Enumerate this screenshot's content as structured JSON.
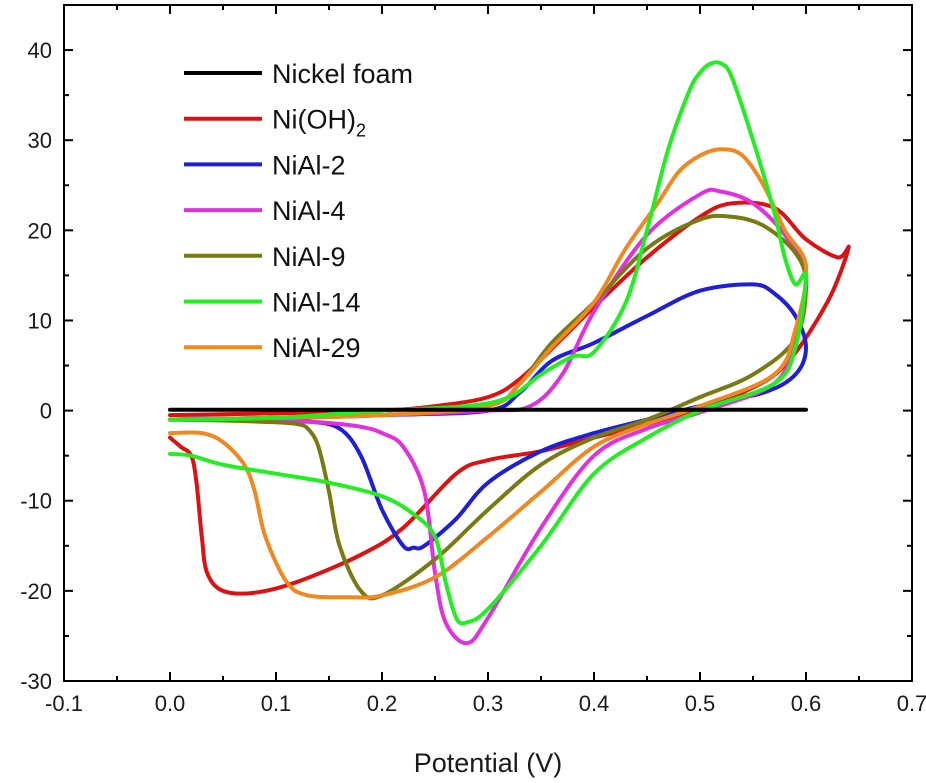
{
  "chart_data": {
    "type": "line",
    "title": "",
    "xlabel": "Potential (V)",
    "ylabel": "",
    "xlim": [
      -0.1,
      0.7
    ],
    "ylim": [
      -30,
      45
    ],
    "xticks": [
      -0.1,
      0.0,
      0.1,
      0.2,
      0.3,
      0.4,
      0.5,
      0.6,
      0.7
    ],
    "xtick_labels": [
      "-0.1",
      "0.0",
      "0.1",
      "0.2",
      "0.3",
      "0.4",
      "0.5",
      "0.6",
      "0.7"
    ],
    "yticks": [
      -30,
      -20,
      -10,
      0,
      10,
      20,
      30,
      40
    ],
    "ytick_labels": [
      "-30",
      "-20",
      "-10",
      "0",
      "10",
      "20",
      "30",
      "40"
    ],
    "grid": false,
    "legend_position": "top-left",
    "series": [
      {
        "name": "Nickel foam",
        "legend": [
          {
            "text": "Nickel foam"
          }
        ],
        "color": "#000000",
        "x": [
          0.0,
          0.1,
          0.2,
          0.3,
          0.4,
          0.5,
          0.6
        ],
        "y": [
          0.1,
          0.1,
          0.1,
          0.1,
          0.1,
          0.1,
          0.1
        ]
      },
      {
        "name": "Ni(OH)2",
        "legend": [
          {
            "text": "Ni(OH)"
          },
          {
            "text": "2",
            "sub": true
          }
        ],
        "color": "#dd1111",
        "x": [
          0.0,
          0.1,
          0.2,
          0.25,
          0.3,
          0.33,
          0.37,
          0.4,
          0.45,
          0.5,
          0.53,
          0.57,
          0.6,
          0.63,
          0.64,
          0.62,
          0.58,
          0.54,
          0.5,
          0.45,
          0.4,
          0.35,
          0.3,
          0.27,
          0.22,
          0.18,
          0.12,
          0.08,
          0.05,
          0.035,
          0.03,
          0.025,
          0.02,
          0.01,
          0.0
        ],
        "y": [
          -0.5,
          -0.3,
          0.0,
          0.5,
          1.5,
          3.5,
          8.0,
          11.5,
          17.0,
          21.5,
          23.0,
          22.5,
          19.0,
          17.0,
          18.0,
          12.0,
          5.0,
          2.0,
          0.3,
          -1.5,
          -3.0,
          -4.5,
          -5.5,
          -7.0,
          -13.0,
          -16.0,
          -19.0,
          -20.2,
          -20.0,
          -18.0,
          -14.0,
          -8.0,
          -5.0,
          -4.0,
          -3.0
        ]
      },
      {
        "name": "NiAl-2",
        "legend": [
          {
            "text": "NiAl-2"
          }
        ],
        "color": "#1f1fd6",
        "x": [
          0.0,
          0.1,
          0.2,
          0.3,
          0.33,
          0.36,
          0.4,
          0.45,
          0.5,
          0.55,
          0.57,
          0.59,
          0.6,
          0.59,
          0.56,
          0.5,
          0.45,
          0.4,
          0.35,
          0.3,
          0.27,
          0.24,
          0.23,
          0.22,
          0.2,
          0.18,
          0.16,
          0.13,
          0.08,
          0.03,
          0.0
        ],
        "y": [
          -1.0,
          -0.8,
          -0.5,
          0.0,
          2.0,
          5.5,
          7.5,
          10.5,
          13.3,
          14.0,
          13.0,
          10.5,
          7.0,
          4.0,
          2.0,
          0.5,
          -1.0,
          -2.5,
          -4.5,
          -8.0,
          -12.0,
          -15.0,
          -15.2,
          -15.0,
          -11.0,
          -5.0,
          -2.0,
          -1.2,
          -1.0,
          -0.9,
          -1.0
        ]
      },
      {
        "name": "NiAl-4",
        "legend": [
          {
            "text": "NiAl-4"
          }
        ],
        "color": "#e030e0",
        "x": [
          0.0,
          0.1,
          0.2,
          0.3,
          0.34,
          0.37,
          0.4,
          0.45,
          0.5,
          0.52,
          0.55,
          0.58,
          0.6,
          0.59,
          0.57,
          0.5,
          0.45,
          0.4,
          0.35,
          0.3,
          0.28,
          0.26,
          0.25,
          0.24,
          0.22,
          0.2,
          0.18,
          0.14,
          0.08,
          0.03,
          0.0
        ],
        "y": [
          -1.0,
          -0.8,
          -0.5,
          0.0,
          0.5,
          4.0,
          11.0,
          19.5,
          24.0,
          24.3,
          23.0,
          19.5,
          15.0,
          8.0,
          3.0,
          -0.2,
          -2.0,
          -5.0,
          -13.0,
          -23.0,
          -25.8,
          -23.5,
          -18.0,
          -9.0,
          -4.0,
          -2.5,
          -1.8,
          -1.3,
          -1.1,
          -1.0,
          -1.0
        ]
      },
      {
        "name": "NiAl-9",
        "legend": [
          {
            "text": "NiAl-9"
          }
        ],
        "color": "#7a7a12",
        "x": [
          0.0,
          0.1,
          0.2,
          0.3,
          0.33,
          0.36,
          0.4,
          0.45,
          0.5,
          0.53,
          0.56,
          0.59,
          0.6,
          0.59,
          0.55,
          0.5,
          0.45,
          0.4,
          0.35,
          0.3,
          0.25,
          0.2,
          0.18,
          0.16,
          0.15,
          0.14,
          0.13,
          0.12,
          0.1,
          0.05,
          0.0
        ],
        "y": [
          -1.0,
          -0.8,
          -0.5,
          0.5,
          3.0,
          7.5,
          12.0,
          18.0,
          21.2,
          21.5,
          20.5,
          17.5,
          14.0,
          8.0,
          4.0,
          1.5,
          -1.0,
          -3.0,
          -6.0,
          -11.0,
          -16.5,
          -20.5,
          -20.0,
          -15.0,
          -9.0,
          -4.0,
          -2.0,
          -1.5,
          -1.3,
          -1.1,
          -1.0
        ]
      },
      {
        "name": "NiAl-14",
        "legend": [
          {
            "text": "NiAl-14"
          }
        ],
        "color": "#22ee22",
        "x": [
          0.0,
          0.1,
          0.2,
          0.28,
          0.32,
          0.35,
          0.38,
          0.4,
          0.43,
          0.45,
          0.47,
          0.49,
          0.5,
          0.51,
          0.52,
          0.53,
          0.55,
          0.57,
          0.58,
          0.59,
          0.6,
          0.59,
          0.57,
          0.5,
          0.45,
          0.4,
          0.35,
          0.3,
          0.28,
          0.27,
          0.26,
          0.25,
          0.23,
          0.2,
          0.15,
          0.1,
          0.05,
          0.02,
          0.0
        ],
        "y": [
          -1.0,
          -0.8,
          0.0,
          0.5,
          1.5,
          4.0,
          6.0,
          6.5,
          12.0,
          20.0,
          29.0,
          35.5,
          37.5,
          38.5,
          38.5,
          37.0,
          30.0,
          22.0,
          17.0,
          14.0,
          15.0,
          7.0,
          3.0,
          0.0,
          -3.0,
          -7.0,
          -15.0,
          -22.0,
          -23.5,
          -23.0,
          -19.0,
          -14.0,
          -11.5,
          -9.5,
          -8.0,
          -7.0,
          -6.0,
          -5.0,
          -4.8
        ]
      },
      {
        "name": "NiAl-29",
        "legend": [
          {
            "text": "NiAl-29"
          }
        ],
        "color": "#f08820",
        "x": [
          0.0,
          0.1,
          0.2,
          0.3,
          0.33,
          0.36,
          0.4,
          0.43,
          0.46,
          0.48,
          0.5,
          0.52,
          0.54,
          0.56,
          0.58,
          0.6,
          0.59,
          0.57,
          0.5,
          0.45,
          0.4,
          0.35,
          0.3,
          0.25,
          0.2,
          0.17,
          0.13,
          0.11,
          0.09,
          0.08,
          0.07,
          0.05,
          0.03,
          0.0
        ],
        "y": [
          -1.0,
          -0.8,
          -0.5,
          0.5,
          3.0,
          7.0,
          12.0,
          18.0,
          23.0,
          26.5,
          28.3,
          29.0,
          28.3,
          25.0,
          20.0,
          16.0,
          9.0,
          4.0,
          0.5,
          -1.5,
          -4.0,
          -9.0,
          -14.0,
          -18.5,
          -20.5,
          -20.7,
          -20.5,
          -19.0,
          -14.0,
          -9.0,
          -6.0,
          -3.5,
          -2.5,
          -2.5
        ]
      }
    ]
  }
}
